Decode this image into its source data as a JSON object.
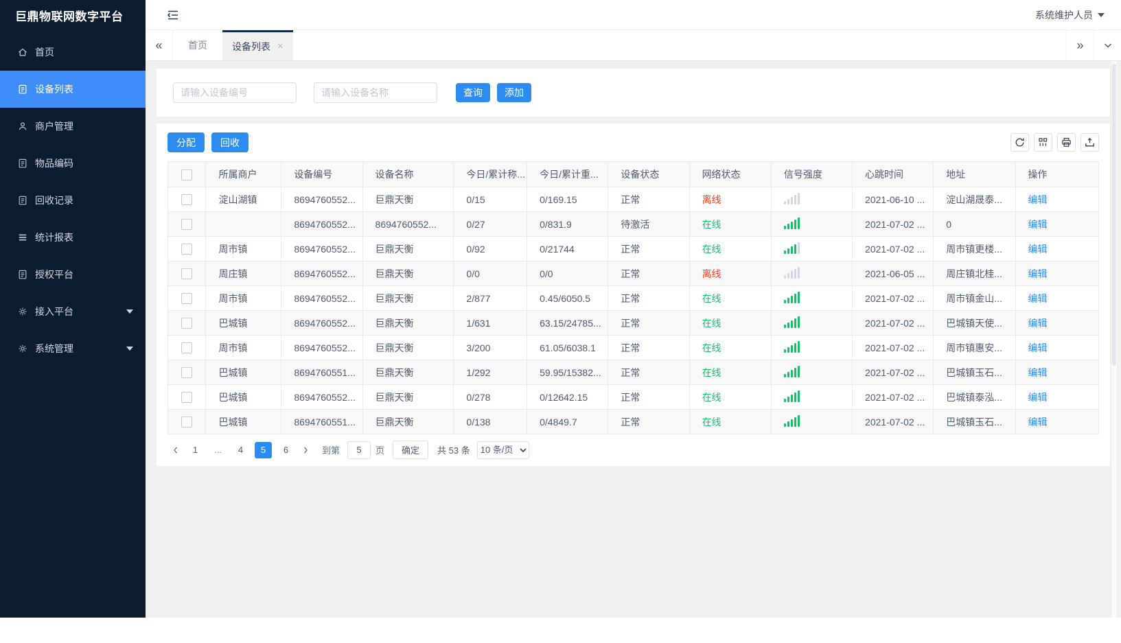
{
  "colors": {
    "accent": "#2d8cf0",
    "sidebar_bg": "#0b1c31",
    "sidebar_active": "#3e8df8",
    "online": "#19be6b",
    "offline": "#ed3f14"
  },
  "sidebar": {
    "logo": "巨鼎物联网数字平台",
    "items": [
      {
        "id": "home",
        "label": "首页",
        "icon": "home-icon",
        "active": false,
        "expandable": false
      },
      {
        "id": "device-list",
        "label": "设备列表",
        "icon": "file-list-icon",
        "active": true,
        "expandable": false
      },
      {
        "id": "merchant-management",
        "label": "商户管理",
        "icon": "user-icon",
        "active": false,
        "expandable": false
      },
      {
        "id": "item-code",
        "label": "物品编码",
        "icon": "file-list-icon",
        "active": false,
        "expandable": false
      },
      {
        "id": "recycle-records",
        "label": "回收记录",
        "icon": "file-list-icon",
        "active": false,
        "expandable": false
      },
      {
        "id": "statistics-report",
        "label": "统计报表",
        "icon": "list-icon",
        "active": false,
        "expandable": false
      },
      {
        "id": "authorization-platform",
        "label": "授权平台",
        "icon": "file-list-icon",
        "active": false,
        "expandable": false
      },
      {
        "id": "access-platform",
        "label": "接入平台",
        "icon": "gear-icon",
        "active": false,
        "expandable": true
      },
      {
        "id": "system-management",
        "label": "系统管理",
        "icon": "gear-icon",
        "active": false,
        "expandable": true
      }
    ]
  },
  "header": {
    "user": "系统维护人员"
  },
  "tabs": {
    "items": [
      {
        "id": "home",
        "label": "首页",
        "active": false,
        "closable": false
      },
      {
        "id": "device-list",
        "label": "设备列表",
        "active": true,
        "closable": true
      }
    ]
  },
  "search": {
    "device_no_placeholder": "请输入设备编号",
    "device_name_placeholder": "请输入设备名称",
    "query_label": "查询",
    "add_label": "添加"
  },
  "toolbar": {
    "assign_label": "分配",
    "recycle_label": "回收"
  },
  "table": {
    "columns": [
      "所属商户",
      "设备编号",
      "设备名称",
      "今日/累计称...",
      "今日/累计重...",
      "设备状态",
      "网络状态",
      "信号强度",
      "心跳时间",
      "地址",
      "操作"
    ],
    "edit_label": "编辑",
    "rows": [
      {
        "merchant": "淀山湖镇",
        "device_no": "8694760552...",
        "device_name": "巨鼎天衡",
        "today_count": "0/15",
        "today_weight": "0/169.15",
        "device_status": "正常",
        "network": "离线",
        "network_state": "offline",
        "signal": 0,
        "heartbeat": "2021-06-10 ...",
        "address": "淀山湖晟泰..."
      },
      {
        "merchant": "",
        "device_no": "8694760552...",
        "device_name": "8694760552...",
        "today_count": "0/27",
        "today_weight": "0/831.9",
        "device_status": "待激活",
        "network": "在线",
        "network_state": "online",
        "signal": 5,
        "heartbeat": "2021-07-02 ...",
        "address": "0"
      },
      {
        "merchant": "周市镇",
        "device_no": "8694760552...",
        "device_name": "巨鼎天衡",
        "today_count": "0/92",
        "today_weight": "0/21744",
        "device_status": "正常",
        "network": "在线",
        "network_state": "online",
        "signal": 4,
        "heartbeat": "2021-07-02 ...",
        "address": "周市镇更楼..."
      },
      {
        "merchant": "周庄镇",
        "device_no": "8694760552...",
        "device_name": "巨鼎天衡",
        "today_count": "0/0",
        "today_weight": "0/0",
        "device_status": "正常",
        "network": "离线",
        "network_state": "offline",
        "signal": 0,
        "heartbeat": "2021-06-05 ...",
        "address": "周庄镇北桂..."
      },
      {
        "merchant": "周市镇",
        "device_no": "8694760552...",
        "device_name": "巨鼎天衡",
        "today_count": "2/877",
        "today_weight": "0.45/6050.5",
        "device_status": "正常",
        "network": "在线",
        "network_state": "online",
        "signal": 5,
        "heartbeat": "2021-07-02 ...",
        "address": "周市镇金山..."
      },
      {
        "merchant": "巴城镇",
        "device_no": "8694760552...",
        "device_name": "巨鼎天衡",
        "today_count": "1/631",
        "today_weight": "63.15/24785...",
        "device_status": "正常",
        "network": "在线",
        "network_state": "online",
        "signal": 5,
        "heartbeat": "2021-07-02 ...",
        "address": "巴城镇天使..."
      },
      {
        "merchant": "周市镇",
        "device_no": "8694760552...",
        "device_name": "巨鼎天衡",
        "today_count": "3/200",
        "today_weight": "61.05/6038.1",
        "device_status": "正常",
        "network": "在线",
        "network_state": "online",
        "signal": 5,
        "heartbeat": "2021-07-02 ...",
        "address": "周市镇惠安..."
      },
      {
        "merchant": "巴城镇",
        "device_no": "8694760551...",
        "device_name": "巨鼎天衡",
        "today_count": "1/292",
        "today_weight": "59.95/15382...",
        "device_status": "正常",
        "network": "在线",
        "network_state": "online",
        "signal": 5,
        "heartbeat": "2021-07-02 ...",
        "address": "巴城镇玉石..."
      },
      {
        "merchant": "巴城镇",
        "device_no": "8694760552...",
        "device_name": "巨鼎天衡",
        "today_count": "0/278",
        "today_weight": "0/12642.15",
        "device_status": "正常",
        "network": "在线",
        "network_state": "online",
        "signal": 5,
        "heartbeat": "2021-07-02 ...",
        "address": "巴城镇泰泓..."
      },
      {
        "merchant": "巴城镇",
        "device_no": "8694760551...",
        "device_name": "巨鼎天衡",
        "today_count": "0/138",
        "today_weight": "0/4849.7",
        "device_status": "正常",
        "network": "在线",
        "network_state": "online",
        "signal": 5,
        "heartbeat": "2021-07-02 ...",
        "address": "巴城镇玉石..."
      }
    ]
  },
  "pagination": {
    "pages": [
      "1",
      "...",
      "4",
      "5",
      "6"
    ],
    "active": "5",
    "goto_label": "到第",
    "goto_value": "5",
    "page_label": "页",
    "confirm_label": "确定",
    "total_label": "共 53 条",
    "page_size": "10 条/页"
  }
}
